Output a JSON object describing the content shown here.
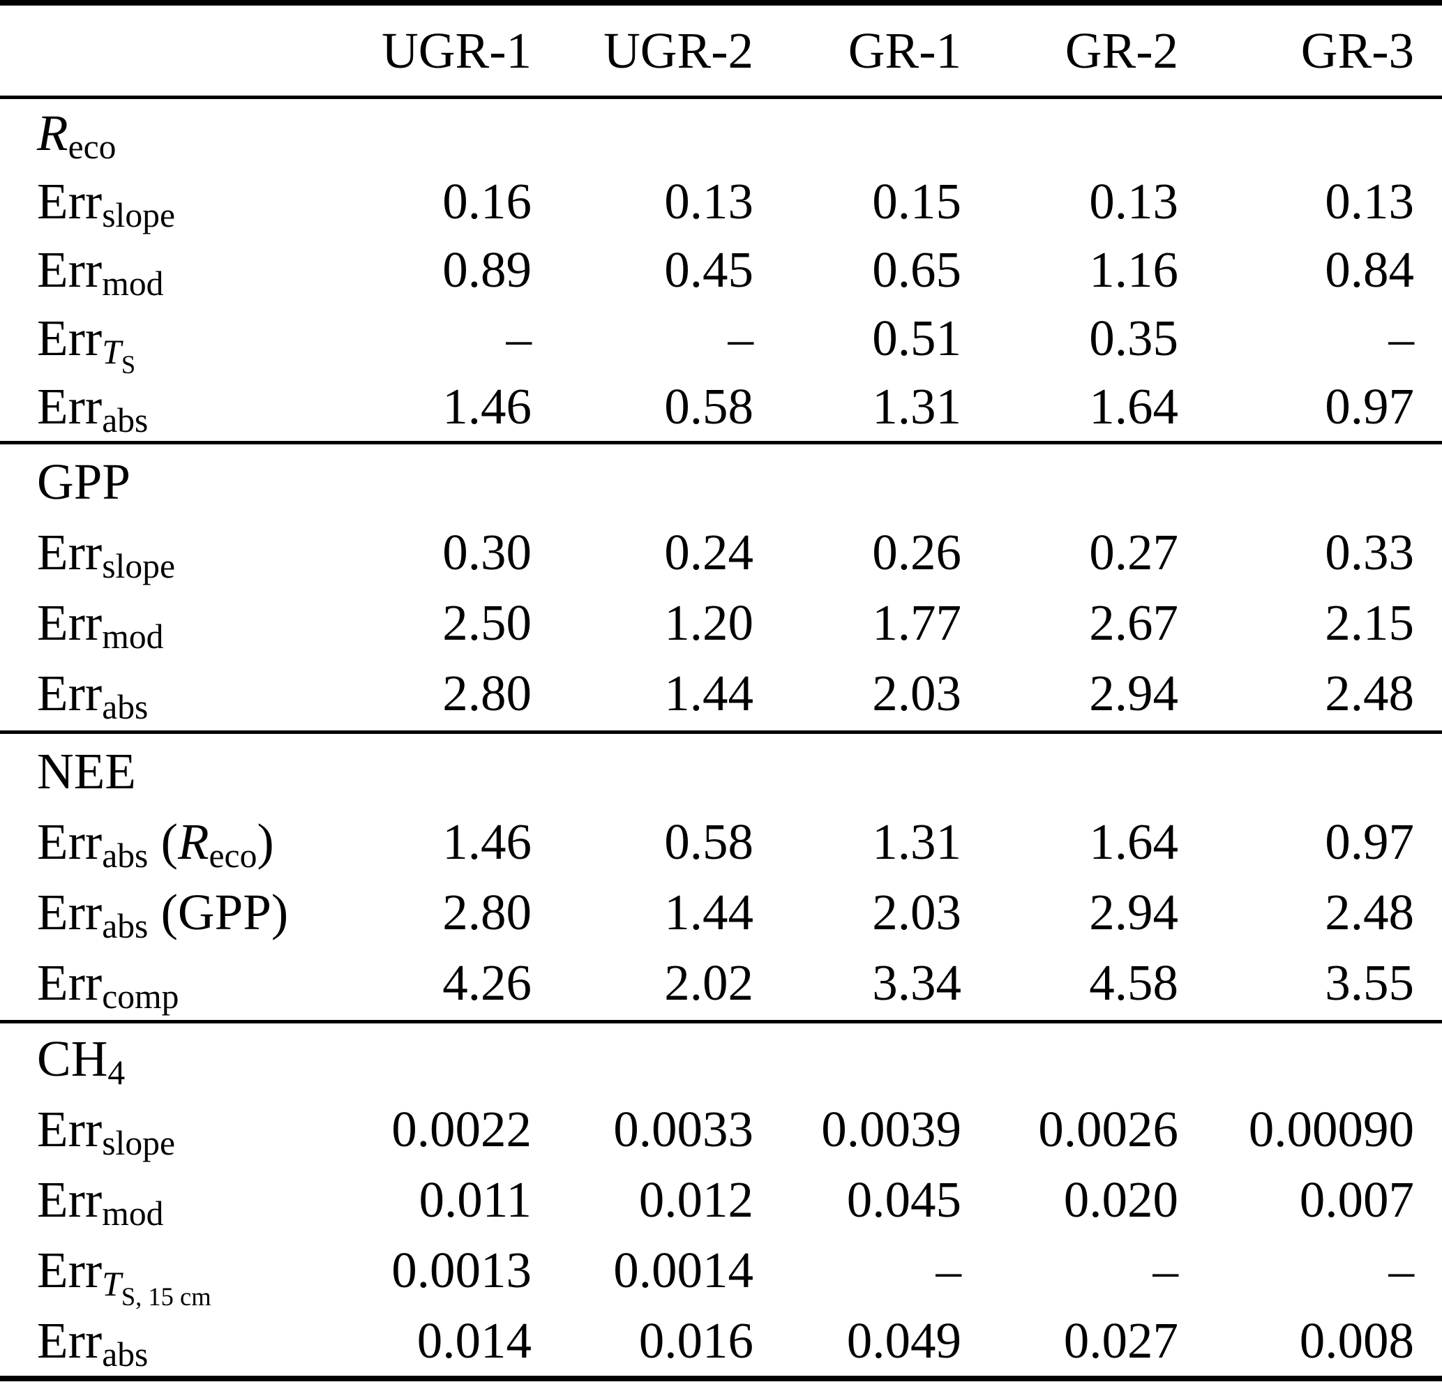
{
  "table": {
    "columns": [
      "UGR-1",
      "UGR-2",
      "GR-1",
      "GR-2",
      "GR-3"
    ],
    "missing_value_symbol": "–",
    "sections": [
      {
        "id": "reco",
        "title_plain": "R_eco",
        "label": [
          [
            "R",
            "i"
          ],
          [
            "eco",
            "s"
          ]
        ],
        "rows": [
          {
            "label_plain": "Err_slope",
            "label": [
              [
                "Err",
                "n"
              ],
              [
                "slope",
                "s"
              ]
            ],
            "values": [
              "0.16",
              "0.13",
              "0.15",
              "0.13",
              "0.13"
            ]
          },
          {
            "label_plain": "Err_mod",
            "label": [
              [
                "Err",
                "n"
              ],
              [
                "mod",
                "s"
              ]
            ],
            "values": [
              "0.89",
              "0.45",
              "0.65",
              "1.16",
              "0.84"
            ]
          },
          {
            "label_plain": "Err_TS",
            "label": [
              [
                "Err",
                "n"
              ],
              [
                "T",
                "si"
              ],
              [
                "S",
                "ss"
              ]
            ],
            "values": [
              "–",
              "–",
              "0.51",
              "0.35",
              "–"
            ]
          },
          {
            "label_plain": "Err_abs",
            "label": [
              [
                "Err",
                "n"
              ],
              [
                "abs",
                "s"
              ]
            ],
            "values": [
              "1.46",
              "0.58",
              "1.31",
              "1.64",
              "0.97"
            ]
          }
        ]
      },
      {
        "id": "gpp",
        "title_plain": "GPP",
        "label": [
          [
            "GPP",
            "n"
          ]
        ],
        "rows": [
          {
            "label_plain": "Err_slope",
            "label": [
              [
                "Err",
                "n"
              ],
              [
                "slope",
                "s"
              ]
            ],
            "values": [
              "0.30",
              "0.24",
              "0.26",
              "0.27",
              "0.33"
            ]
          },
          {
            "label_plain": "Err_mod",
            "label": [
              [
                "Err",
                "n"
              ],
              [
                "mod",
                "s"
              ]
            ],
            "values": [
              "2.50",
              "1.20",
              "1.77",
              "2.67",
              "2.15"
            ]
          },
          {
            "label_plain": "Err_abs",
            "label": [
              [
                "Err",
                "n"
              ],
              [
                "abs",
                "s"
              ]
            ],
            "values": [
              "2.80",
              "1.44",
              "2.03",
              "2.94",
              "2.48"
            ]
          }
        ]
      },
      {
        "id": "nee",
        "title_plain": "NEE",
        "label": [
          [
            "NEE",
            "n"
          ]
        ],
        "rows": [
          {
            "label_plain": "Err_abs (R_eco)",
            "label": [
              [
                "Err",
                "n"
              ],
              [
                "abs",
                "s"
              ],
              [
                " (",
                "n"
              ],
              [
                "R",
                "i"
              ],
              [
                "eco",
                "s"
              ],
              [
                ")",
                "n"
              ]
            ],
            "values": [
              "1.46",
              "0.58",
              "1.31",
              "1.64",
              "0.97"
            ]
          },
          {
            "label_plain": "Err_abs (GPP)",
            "label": [
              [
                "Err",
                "n"
              ],
              [
                "abs",
                "s"
              ],
              [
                " (GPP)",
                "n"
              ]
            ],
            "values": [
              "2.80",
              "1.44",
              "2.03",
              "2.94",
              "2.48"
            ]
          },
          {
            "label_plain": "Err_comp",
            "label": [
              [
                "Err",
                "n"
              ],
              [
                "comp",
                "s"
              ]
            ],
            "values": [
              "4.26",
              "2.02",
              "3.34",
              "4.58",
              "3.55"
            ]
          }
        ]
      },
      {
        "id": "ch4",
        "title_plain": "CH4",
        "label": [
          [
            "CH",
            "n"
          ],
          [
            "4",
            "s"
          ]
        ],
        "rows": [
          {
            "label_plain": "Err_slope",
            "label": [
              [
                "Err",
                "n"
              ],
              [
                "slope",
                "s"
              ]
            ],
            "values": [
              "0.0022",
              "0.0033",
              "0.0039",
              "0.0026",
              "0.00090"
            ]
          },
          {
            "label_plain": "Err_mod",
            "label": [
              [
                "Err",
                "n"
              ],
              [
                "mod",
                "s"
              ]
            ],
            "values": [
              "0.011",
              "0.012",
              "0.045",
              "0.020",
              "0.007"
            ]
          },
          {
            "label_plain": "Err_TS_15cm",
            "label": [
              [
                "Err",
                "n"
              ],
              [
                "T",
                "si"
              ],
              [
                "S, 15 cm",
                "ss"
              ]
            ],
            "values": [
              "0.0013",
              "0.0014",
              "–",
              "–",
              "–"
            ]
          },
          {
            "label_plain": "Err_abs",
            "label": [
              [
                "Err",
                "n"
              ],
              [
                "abs",
                "s"
              ]
            ],
            "values": [
              "0.014",
              "0.016",
              "0.049",
              "0.027",
              "0.008"
            ]
          }
        ]
      }
    ]
  }
}
